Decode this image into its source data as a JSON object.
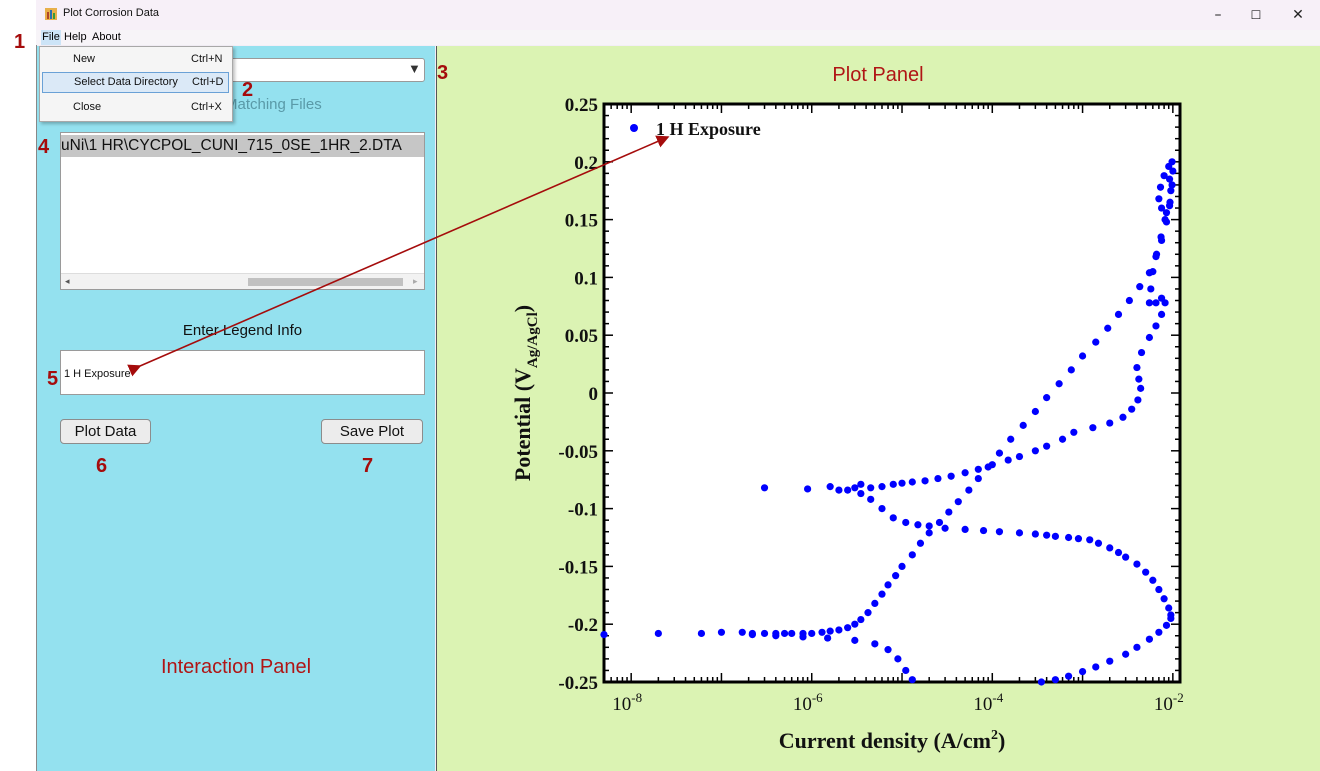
{
  "window": {
    "title": "Plot Corrosion Data",
    "minimize": "–",
    "maximize": "☐",
    "close": "✕",
    "icon": "app-icon"
  },
  "menubar": {
    "file": "File",
    "help": "Help",
    "about": "About"
  },
  "file_menu": {
    "items": [
      {
        "label": "New",
        "shortcut": "Ctrl+N"
      },
      {
        "label": "Select Data Directory",
        "shortcut": "Ctrl+D"
      },
      {
        "label": "Close",
        "shortcut": "Ctrl+X"
      }
    ]
  },
  "interaction_panel": {
    "combo_value": "",
    "matching_label": "Matching Files",
    "files": [
      "uNi\\1 HR\\CYCPOL_CUNI_715_0SE_1HR_2.DTA"
    ],
    "scroll_left": "◂",
    "scroll_right": "▸",
    "legend_label": "Enter Legend Info",
    "legend_value": "1 H Exposure",
    "plot_button": "Plot Data",
    "save_button": "Save Plot",
    "panel_label": "Interaction Panel"
  },
  "plot_panel": {
    "panel_label": "Plot Panel"
  },
  "annotations": {
    "n1": "1",
    "n2": "2",
    "n3": "3",
    "n4": "4",
    "n5": "5",
    "n6": "6",
    "n7": "7",
    "color": "#a50c0c"
  },
  "colors": {
    "left_panel": "#94e1ef",
    "right_panel": "#dbf3b3",
    "series": "#0000ff",
    "label_red": "#b01515"
  },
  "chart_data": {
    "type": "scatter",
    "ylabel": "Potential (V",
    "ylabel_sub": "Ag/AgCl",
    "ylabel_close": ")",
    "xlabel": "Current density (A/cm",
    "xlabel_sup": "2",
    "xlabel_close": ")",
    "xscale": "log",
    "xlim": [
      5e-09,
      0.012
    ],
    "ylim": [
      -0.25,
      0.25
    ],
    "yticks": [
      "0.25",
      "0.2",
      "0.15",
      "0.1",
      "0.05",
      "0",
      "-0.05",
      "-0.1",
      "-0.15",
      "-0.2",
      "-0.25"
    ],
    "xticks": [
      {
        "base": "10",
        "exp": "-8",
        "v": 1e-08
      },
      {
        "base": "10",
        "exp": "-6",
        "v": 1e-06
      },
      {
        "base": "10",
        "exp": "-4",
        "v": 0.0001
      },
      {
        "base": "10",
        "exp": "-2",
        "v": 0.01
      }
    ],
    "legend_position": "top-left",
    "series": [
      {
        "name": "1 H Exposure",
        "color": "#0000ff",
        "points": [
          [
            3e-07,
            -0.082
          ],
          [
            9e-07,
            -0.083
          ],
          [
            1.6e-06,
            -0.081
          ],
          [
            2e-06,
            -0.084
          ],
          [
            3e-06,
            -0.082
          ],
          [
            3.5e-06,
            -0.079
          ],
          [
            4.5e-06,
            -0.082
          ],
          [
            6e-06,
            -0.081
          ],
          [
            8e-06,
            -0.079
          ],
          [
            1e-05,
            -0.078
          ],
          [
            1.3e-05,
            -0.077
          ],
          [
            1.8e-05,
            -0.076
          ],
          [
            2.5e-05,
            -0.074
          ],
          [
            3.5e-05,
            -0.072
          ],
          [
            5e-05,
            -0.069
          ],
          [
            7e-05,
            -0.066
          ],
          [
            0.0001,
            -0.062
          ],
          [
            0.00015,
            -0.058
          ],
          [
            0.0002,
            -0.055
          ],
          [
            0.0003,
            -0.05
          ],
          [
            0.0004,
            -0.046
          ],
          [
            0.0006,
            -0.04
          ],
          [
            2.5e-06,
            -0.084
          ],
          [
            3.5e-06,
            -0.087
          ],
          [
            4.5e-06,
            -0.092
          ],
          [
            6e-06,
            -0.1
          ],
          [
            8e-06,
            -0.108
          ],
          [
            1.1e-05,
            -0.112
          ],
          [
            1.5e-05,
            -0.114
          ],
          [
            2e-05,
            -0.115
          ],
          [
            3e-05,
            -0.117
          ],
          [
            5e-05,
            -0.118
          ],
          [
            8e-05,
            -0.119
          ],
          [
            0.00012,
            -0.12
          ],
          [
            0.0002,
            -0.121
          ],
          [
            0.0003,
            -0.122
          ],
          [
            0.0004,
            -0.123
          ],
          [
            0.0005,
            -0.124
          ],
          [
            0.0007,
            -0.125
          ],
          [
            0.0009,
            -0.126
          ],
          [
            0.0012,
            -0.127
          ],
          [
            0.0015,
            -0.13
          ],
          [
            0.002,
            -0.134
          ],
          [
            0.0025,
            -0.138
          ],
          [
            0.003,
            -0.142
          ],
          [
            0.004,
            -0.148
          ],
          [
            0.005,
            -0.155
          ],
          [
            0.006,
            -0.162
          ],
          [
            0.007,
            -0.17
          ],
          [
            0.008,
            -0.178
          ],
          [
            0.009,
            -0.186
          ],
          [
            0.0095,
            -0.192
          ],
          [
            0.0095,
            -0.195
          ],
          [
            0.0085,
            -0.201
          ],
          [
            0.007,
            -0.207
          ],
          [
            0.0055,
            -0.213
          ],
          [
            0.004,
            -0.22
          ],
          [
            0.003,
            -0.226
          ],
          [
            0.002,
            -0.232
          ],
          [
            0.0014,
            -0.237
          ],
          [
            0.001,
            -0.241
          ],
          [
            0.0007,
            -0.245
          ],
          [
            0.0005,
            -0.248
          ],
          [
            0.00035,
            -0.25
          ],
          [
            5e-09,
            -0.209
          ],
          [
            2e-08,
            -0.208
          ],
          [
            6e-08,
            -0.208
          ],
          [
            1e-07,
            -0.207
          ],
          [
            1.7e-07,
            -0.207
          ],
          [
            2.2e-07,
            -0.208
          ],
          [
            3e-07,
            -0.208
          ],
          [
            4e-07,
            -0.208
          ],
          [
            5e-07,
            -0.208
          ],
          [
            6e-07,
            -0.208
          ],
          [
            8e-07,
            -0.208
          ],
          [
            1e-06,
            -0.208
          ],
          [
            1.3e-06,
            -0.207
          ],
          [
            1.6e-06,
            -0.206
          ],
          [
            2e-06,
            -0.205
          ],
          [
            2.5e-06,
            -0.203
          ],
          [
            3e-06,
            -0.2
          ],
          [
            3.5e-06,
            -0.196
          ],
          [
            4.2e-06,
            -0.19
          ],
          [
            5e-06,
            -0.182
          ],
          [
            6e-06,
            -0.174
          ],
          [
            7e-06,
            -0.166
          ],
          [
            8.5e-06,
            -0.158
          ],
          [
            1e-05,
            -0.15
          ],
          [
            1.3e-05,
            -0.14
          ],
          [
            1.6e-05,
            -0.13
          ],
          [
            2e-05,
            -0.121
          ],
          [
            2.6e-05,
            -0.112
          ],
          [
            3.3e-05,
            -0.103
          ],
          [
            4.2e-05,
            -0.094
          ],
          [
            5.5e-05,
            -0.084
          ],
          [
            7e-05,
            -0.074
          ],
          [
            9e-05,
            -0.064
          ],
          [
            0.00012,
            -0.052
          ],
          [
            0.00016,
            -0.04
          ],
          [
            0.00022,
            -0.028
          ],
          [
            0.0003,
            -0.016
          ],
          [
            0.0004,
            -0.004
          ],
          [
            0.00055,
            0.008
          ],
          [
            0.00075,
            0.02
          ],
          [
            0.001,
            0.032
          ],
          [
            0.0014,
            0.044
          ],
          [
            0.0019,
            0.056
          ],
          [
            0.0025,
            0.068
          ],
          [
            0.0033,
            0.08
          ],
          [
            0.0043,
            0.092
          ],
          [
            0.0055,
            0.104
          ],
          [
            0.0065,
            0.118
          ],
          [
            0.0075,
            0.132
          ],
          [
            0.0085,
            0.148
          ],
          [
            0.0093,
            0.165
          ],
          [
            0.0098,
            0.18
          ],
          [
            0.01,
            0.192
          ],
          [
            0.0098,
            0.2
          ],
          [
            0.009,
            0.196
          ],
          [
            0.008,
            0.188
          ],
          [
            0.0073,
            0.178
          ],
          [
            0.007,
            0.168
          ],
          [
            0.0075,
            0.16
          ],
          [
            0.0085,
            0.156
          ],
          [
            0.0092,
            0.162
          ],
          [
            0.0095,
            0.175
          ],
          [
            0.0092,
            0.185
          ],
          [
            0.0082,
            0.15
          ],
          [
            0.0074,
            0.135
          ],
          [
            0.0066,
            0.12
          ],
          [
            0.006,
            0.105
          ],
          [
            0.0057,
            0.09
          ],
          [
            0.0055,
            0.078
          ],
          [
            0.0065,
            0.078
          ],
          [
            0.0075,
            0.082
          ],
          [
            0.0082,
            0.078
          ],
          [
            0.0075,
            0.068
          ],
          [
            0.0065,
            0.058
          ],
          [
            0.0055,
            0.048
          ],
          [
            0.0045,
            0.035
          ],
          [
            0.004,
            0.022
          ],
          [
            0.0042,
            0.012
          ],
          [
            0.0044,
            0.004
          ],
          [
            0.0041,
            -0.006
          ],
          [
            0.0035,
            -0.014
          ],
          [
            0.0028,
            -0.021
          ],
          [
            0.002,
            -0.026
          ],
          [
            0.0013,
            -0.03
          ],
          [
            0.0008,
            -0.034
          ],
          [
            2.2e-07,
            -0.209
          ],
          [
            4e-07,
            -0.21
          ],
          [
            8e-07,
            -0.211
          ],
          [
            1.5e-06,
            -0.212
          ],
          [
            3e-06,
            -0.214
          ],
          [
            5e-06,
            -0.217
          ],
          [
            7e-06,
            -0.222
          ],
          [
            9e-06,
            -0.23
          ],
          [
            1.1e-05,
            -0.24
          ],
          [
            1.3e-05,
            -0.248
          ]
        ]
      }
    ]
  }
}
